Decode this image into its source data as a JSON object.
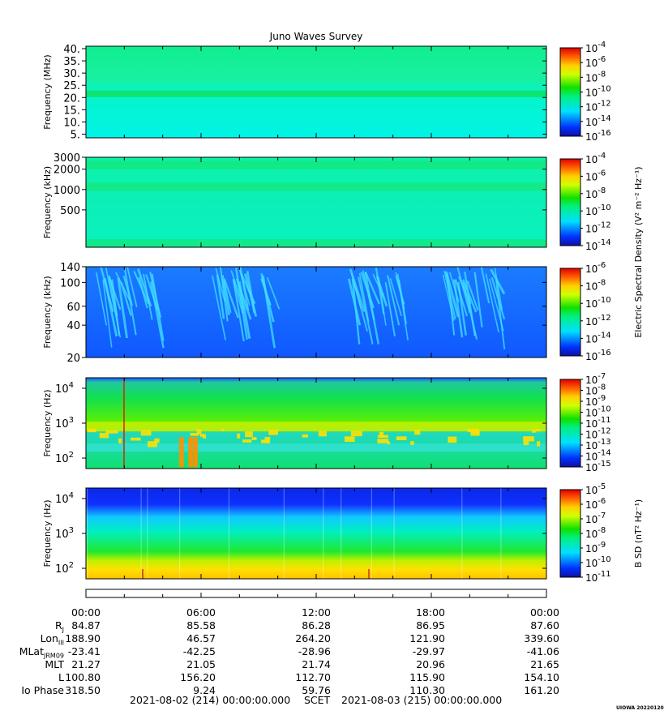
{
  "title": "Juno Waves Survey",
  "credit": "UIOWA 20220120",
  "colors": {
    "background": "#ffffff",
    "axis": "#000000"
  },
  "chart_data": [
    {
      "type": "heatmap",
      "panel": "hfr-high",
      "ylabel": "Frequency (MHz)",
      "y_ticks": [
        "40.",
        "35.",
        "30.",
        "25.",
        "20.",
        "15.",
        "10.",
        "5."
      ],
      "y_tick_values": [
        40,
        35,
        30,
        25,
        20,
        15,
        10,
        5
      ],
      "ylim": [
        3.5,
        41
      ],
      "scale": "linear",
      "background_level": "1e-13",
      "bands": [
        {
          "freq": 21.5,
          "level": "1e-12"
        }
      ],
      "colorbar_ticks": [
        "-4",
        "-6",
        "-8",
        "-10",
        "-12",
        "-14",
        "-16"
      ]
    },
    {
      "type": "heatmap",
      "panel": "hfr-low",
      "ylabel": "Frequency (kHz)",
      "y_ticks": [
        "3000",
        "2000",
        "1000",
        "500"
      ],
      "y_tick_values": [
        3000,
        2000,
        1000,
        500
      ],
      "ylim": [
        140,
        3000
      ],
      "scale": "log",
      "background_level": "1e-12",
      "bands": [
        {
          "freq": 2300,
          "level": "1e-11"
        },
        {
          "freq": 1100,
          "level": "1e-11"
        },
        {
          "freq": 160,
          "level": "1e-11"
        }
      ],
      "colorbar_ticks": [
        "-4",
        "-6",
        "-8",
        "-10",
        "-12",
        "-14"
      ],
      "colorbar_title": "Electric Spectral Density (V² m⁻² Hz⁻¹)"
    },
    {
      "type": "heatmap",
      "panel": "lfr-high",
      "ylabel": "Frequency (kHz)",
      "y_ticks": [
        "140",
        "100",
        "60",
        "40",
        "20"
      ],
      "y_tick_values": [
        140,
        100,
        60,
        40,
        20
      ],
      "ylim": [
        20,
        140
      ],
      "scale": "log",
      "background_level": "1e-14",
      "features": [
        {
          "hour": 2,
          "level": "1e-12"
        },
        {
          "hour": 8,
          "level": "1e-12"
        },
        {
          "hour": 15,
          "level": "1e-12"
        },
        {
          "hour": 20,
          "level": "1e-12"
        }
      ],
      "colorbar_ticks": [
        "-6",
        "-8",
        "-10",
        "-12",
        "-14",
        "-16"
      ]
    },
    {
      "type": "heatmap",
      "panel": "lfr-low",
      "ylabel": "Frequency (Hz)",
      "y_ticks": [
        "4",
        "3",
        "2"
      ],
      "y_tick_values": [
        10000,
        1000,
        100
      ],
      "ylim": [
        50,
        20000
      ],
      "scale": "log",
      "background_level": "1e-12",
      "bands": [
        {
          "freq": 800,
          "level": "1e-10"
        },
        {
          "freq": 200,
          "level": "1e-9"
        }
      ],
      "colorbar_ticks": [
        "-7",
        "-8",
        "-9",
        "-10",
        "-11",
        "-12",
        "-13",
        "-14",
        "-15"
      ]
    },
    {
      "type": "heatmap",
      "panel": "magnetic",
      "ylabel": "Frequency (Hz)",
      "y_ticks": [
        "4",
        "3",
        "2"
      ],
      "y_tick_values": [
        10000,
        1000,
        100
      ],
      "ylim": [
        50,
        20000
      ],
      "scale": "log",
      "background_level": "1e-8",
      "colorbar_ticks": [
        "-5",
        "-6",
        "-7",
        "-8",
        "-9",
        "-10",
        "-11"
      ],
      "colorbar_title": "B SD (nT² Hz⁻¹)"
    }
  ],
  "x_axis": {
    "ticks": [
      "00:00",
      "06:00",
      "12:00",
      "18:00",
      "00:00"
    ],
    "start": "2021-08-02 (214) 00:00:00.000",
    "label": "SCET",
    "end": "2021-08-03 (215) 00:00:00.000"
  },
  "ephemeris": [
    {
      "label": "R",
      "sub": "J",
      "values": [
        "84.87",
        "85.58",
        "86.28",
        "86.95",
        "87.60"
      ]
    },
    {
      "label": "Lon",
      "sub": "III",
      "values": [
        "188.90",
        "46.57",
        "264.20",
        "121.90",
        "339.60"
      ]
    },
    {
      "label": "MLat",
      "sub": "JRM09",
      "values": [
        "-23.41",
        "-42.25",
        "-28.96",
        "-29.97",
        "-41.06"
      ]
    },
    {
      "label": "MLT",
      "sub": "",
      "values": [
        "21.27",
        "21.05",
        "21.74",
        "20.96",
        "21.65"
      ]
    },
    {
      "label": "L",
      "sub": "",
      "values": [
        "100.80",
        "156.20",
        "112.70",
        "115.90",
        "154.10"
      ]
    },
    {
      "label": "Io Phase",
      "sub": "",
      "values": [
        "318.50",
        "9.24",
        "59.76",
        "110.30",
        "161.20"
      ]
    }
  ]
}
